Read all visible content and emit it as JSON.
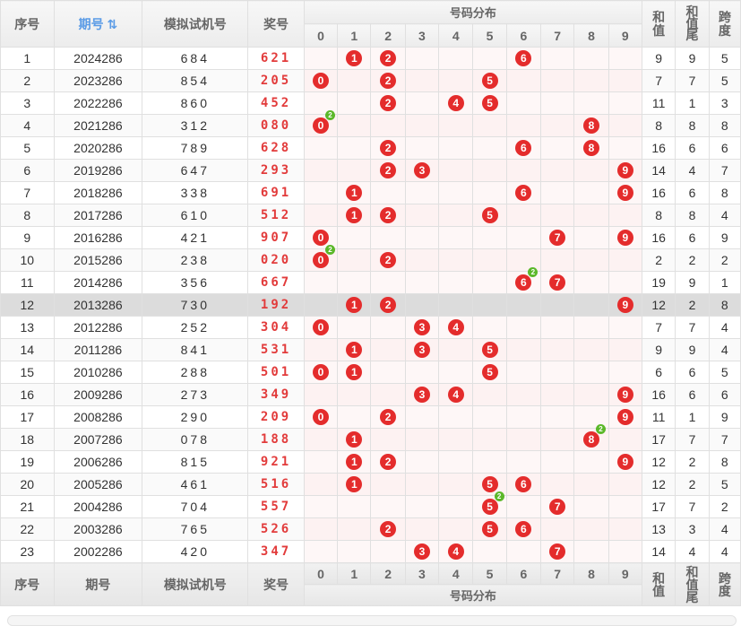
{
  "header": {
    "col_index": "序号",
    "col_period": "期号",
    "sort_icon": "⇅",
    "col_sim": "模拟试机号",
    "col_prize": "奖号",
    "col_dist": "号码分布",
    "digits": [
      "0",
      "1",
      "2",
      "3",
      "4",
      "5",
      "6",
      "7",
      "8",
      "9"
    ],
    "col_sum": "和值",
    "col_sum_tail": "和值尾",
    "col_span": "跨度"
  },
  "rows": [
    {
      "idx": "1",
      "period": "2024286",
      "sim": "684",
      "prize": "621",
      "balls": [
        1,
        2,
        6
      ],
      "repeat": null,
      "sum": "9",
      "tail": "9",
      "span": "5"
    },
    {
      "idx": "2",
      "period": "2023286",
      "sim": "854",
      "prize": "205",
      "balls": [
        0,
        2,
        5
      ],
      "repeat": null,
      "sum": "7",
      "tail": "7",
      "span": "5"
    },
    {
      "idx": "3",
      "period": "2022286",
      "sim": "860",
      "prize": "452",
      "balls": [
        2,
        4,
        5
      ],
      "repeat": null,
      "sum": "11",
      "tail": "1",
      "span": "3"
    },
    {
      "idx": "4",
      "period": "2021286",
      "sim": "312",
      "prize": "080",
      "balls": [
        0,
        8
      ],
      "repeat": 0,
      "sum": "8",
      "tail": "8",
      "span": "8"
    },
    {
      "idx": "5",
      "period": "2020286",
      "sim": "789",
      "prize": "628",
      "balls": [
        2,
        6,
        8
      ],
      "repeat": null,
      "sum": "16",
      "tail": "6",
      "span": "6"
    },
    {
      "idx": "6",
      "period": "2019286",
      "sim": "647",
      "prize": "293",
      "balls": [
        2,
        3,
        9
      ],
      "repeat": null,
      "sum": "14",
      "tail": "4",
      "span": "7"
    },
    {
      "idx": "7",
      "period": "2018286",
      "sim": "338",
      "prize": "691",
      "balls": [
        1,
        6,
        9
      ],
      "repeat": null,
      "sum": "16",
      "tail": "6",
      "span": "8"
    },
    {
      "idx": "8",
      "period": "2017286",
      "sim": "610",
      "prize": "512",
      "balls": [
        1,
        2,
        5
      ],
      "repeat": null,
      "sum": "8",
      "tail": "8",
      "span": "4"
    },
    {
      "idx": "9",
      "period": "2016286",
      "sim": "421",
      "prize": "907",
      "balls": [
        0,
        7,
        9
      ],
      "repeat": null,
      "sum": "16",
      "tail": "6",
      "span": "9"
    },
    {
      "idx": "10",
      "period": "2015286",
      "sim": "238",
      "prize": "020",
      "balls": [
        0,
        2
      ],
      "repeat": 0,
      "sum": "2",
      "tail": "2",
      "span": "2"
    },
    {
      "idx": "11",
      "period": "2014286",
      "sim": "356",
      "prize": "667",
      "balls": [
        6,
        7
      ],
      "repeat": 6,
      "sum": "19",
      "tail": "9",
      "span": "1"
    },
    {
      "idx": "12",
      "period": "2013286",
      "sim": "730",
      "prize": "192",
      "balls": [
        1,
        2,
        9
      ],
      "repeat": null,
      "sum": "12",
      "tail": "2",
      "span": "8",
      "highlight": true
    },
    {
      "idx": "13",
      "period": "2012286",
      "sim": "252",
      "prize": "304",
      "balls": [
        0,
        3,
        4
      ],
      "repeat": null,
      "sum": "7",
      "tail": "7",
      "span": "4"
    },
    {
      "idx": "14",
      "period": "2011286",
      "sim": "841",
      "prize": "531",
      "balls": [
        1,
        3,
        5
      ],
      "repeat": null,
      "sum": "9",
      "tail": "9",
      "span": "4"
    },
    {
      "idx": "15",
      "period": "2010286",
      "sim": "288",
      "prize": "501",
      "balls": [
        0,
        1,
        5
      ],
      "repeat": null,
      "sum": "6",
      "tail": "6",
      "span": "5"
    },
    {
      "idx": "16",
      "period": "2009286",
      "sim": "273",
      "prize": "349",
      "balls": [
        3,
        4,
        9
      ],
      "repeat": null,
      "sum": "16",
      "tail": "6",
      "span": "6"
    },
    {
      "idx": "17",
      "period": "2008286",
      "sim": "290",
      "prize": "209",
      "balls": [
        0,
        2,
        9
      ],
      "repeat": null,
      "sum": "11",
      "tail": "1",
      "span": "9"
    },
    {
      "idx": "18",
      "period": "2007286",
      "sim": "078",
      "prize": "188",
      "balls": [
        1,
        8
      ],
      "repeat": 8,
      "sum": "17",
      "tail": "7",
      "span": "7"
    },
    {
      "idx": "19",
      "period": "2006286",
      "sim": "815",
      "prize": "921",
      "balls": [
        1,
        2,
        9
      ],
      "repeat": null,
      "sum": "12",
      "tail": "2",
      "span": "8"
    },
    {
      "idx": "20",
      "period": "2005286",
      "sim": "461",
      "prize": "516",
      "balls": [
        1,
        5,
        6
      ],
      "repeat": null,
      "sum": "12",
      "tail": "2",
      "span": "5"
    },
    {
      "idx": "21",
      "period": "2004286",
      "sim": "704",
      "prize": "557",
      "balls": [
        5,
        7
      ],
      "repeat": 5,
      "sum": "17",
      "tail": "7",
      "span": "2"
    },
    {
      "idx": "22",
      "period": "2003286",
      "sim": "765",
      "prize": "526",
      "balls": [
        2,
        5,
        6
      ],
      "repeat": null,
      "sum": "13",
      "tail": "3",
      "span": "4"
    },
    {
      "idx": "23",
      "period": "2002286",
      "sim": "420",
      "prize": "347",
      "balls": [
        3,
        4,
        7
      ],
      "repeat": null,
      "sum": "14",
      "tail": "4",
      "span": "4"
    }
  ],
  "repeat_badge": "2",
  "colors": {
    "ball": "#e42c2c",
    "badge": "#5bb82a",
    "prize": "#e23b3b",
    "link": "#5a9be6",
    "highlight": "#dcdcdc"
  }
}
